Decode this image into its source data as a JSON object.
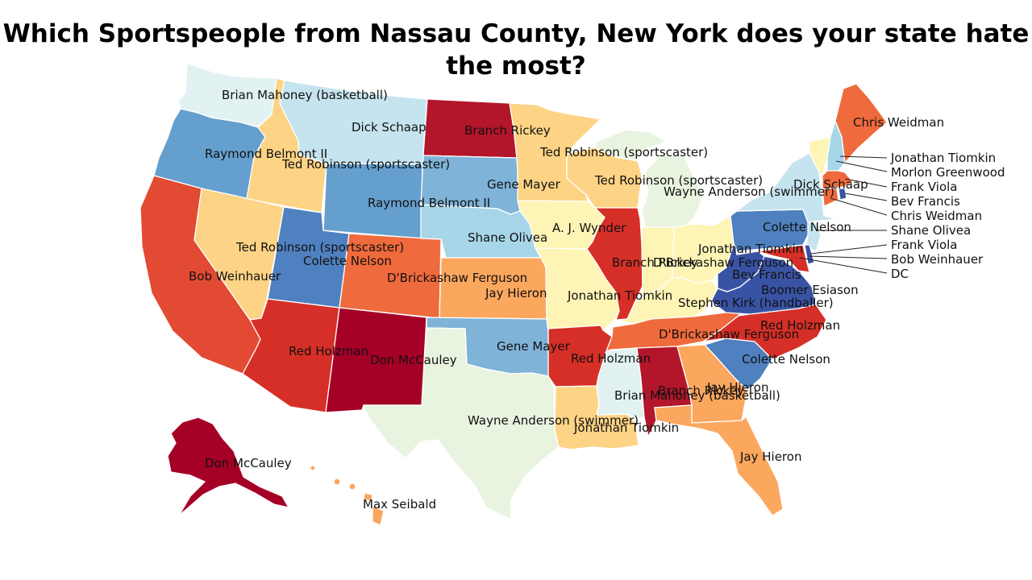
{
  "title": "Which Sportspeople from Nassau County, New York does your state hate the most?",
  "colors": {
    "dark_red": "#a50026",
    "crimson": "#b3162b",
    "red": "#d62f27",
    "red_orange": "#e34a33",
    "orange_red": "#ef6a3c",
    "orange": "#fba75e",
    "light_orange": "#fdd385",
    "pale_yellow": "#fef4b5",
    "pale_green": "#e9f4e0",
    "pale_cyan": "#e2f2f2",
    "light_blue": "#c6e4ef",
    "sky_blue": "#a6d6e8",
    "mid_blue": "#7fb3d8",
    "steel_blue": "#659fcd",
    "blue": "#4f80bf",
    "dark_blue": "#3953a4"
  },
  "labels": {
    "wa": "Brian Mahoney (basketball)",
    "mt": "Dick Schaap",
    "nd": "Branch Rickey",
    "me": "Chris Weidman",
    "or": "Raymond Belmont II",
    "id": "Ted Robinson (sportscaster)",
    "mn": "Ted Robinson (sportscaster)",
    "sd": "Gene Mayer",
    "wi": "Ted Robinson (sportscaster)",
    "mi": "Wayne Anderson (swimmer)",
    "wy": "Raymond Belmont II",
    "ny": "Dick Schaap",
    "pa": "Colette Nelson",
    "ia": "A. J. Wynder",
    "ne": "Shane Olivea",
    "nv": "Ted Robinson (sportscaster)",
    "ut": "Colette Nelson",
    "oh": "Jonathan Tiomkin",
    "in": "D'Brickashaw Ferguson",
    "il": "Branch Rickey",
    "wv": "Bev Francis",
    "ca": "Bob Weinhauer",
    "co": "D'Brickashaw Ferguson",
    "ks": "Jay Hieron",
    "mo": "Jonathan Tiomkin",
    "va": "Boomer Esiason",
    "ky": "Stephen Kirk (handballer)",
    "tn": "D'Brickashaw Ferguson",
    "nc": "Red Holzman",
    "az": "Red Holzman",
    "nm": "Don McCauley",
    "ok": "Gene Mayer",
    "ar": "Red Holzman",
    "sc": "Colette Nelson",
    "ga": "Jay Hieron",
    "al": "Branch Rickey",
    "ms": "Brian Mahoney (basketball)",
    "tx": "Wayne Anderson (swimmer)",
    "la": "Jonathan Tiomkin",
    "fl": "Jay Hieron",
    "ak": "Don McCauley",
    "hi": "Max Seibald"
  },
  "callouts": [
    "Jonathan Tiomkin",
    "Morlon Greenwood",
    "Frank Viola",
    "Bev Francis",
    "Chris Weidman",
    "Shane Olivea",
    "Frank Viola",
    "Bob Weinhauer",
    "DC"
  ]
}
